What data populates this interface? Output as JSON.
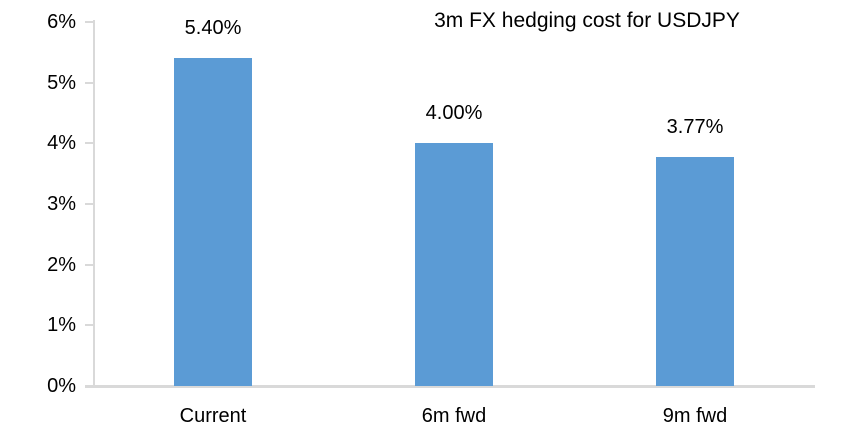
{
  "chart_data": {
    "type": "bar",
    "title": "3m FX hedging cost for USDJPY",
    "categories": [
      "Current",
      "6m fwd",
      "9m fwd"
    ],
    "values": [
      5.4,
      4.0,
      3.77
    ],
    "data_labels": [
      "5.40%",
      "4.00%",
      "3.77%"
    ],
    "y_ticks": [
      "0%",
      "1%",
      "2%",
      "3%",
      "4%",
      "5%",
      "6%"
    ],
    "ylim": [
      0,
      6
    ],
    "xlabel": "",
    "ylabel": "",
    "grid": "off",
    "legend": "none",
    "bar_color": "#5B9BD5",
    "axis_color": "#D9D9D9",
    "text_color": "#000000"
  }
}
